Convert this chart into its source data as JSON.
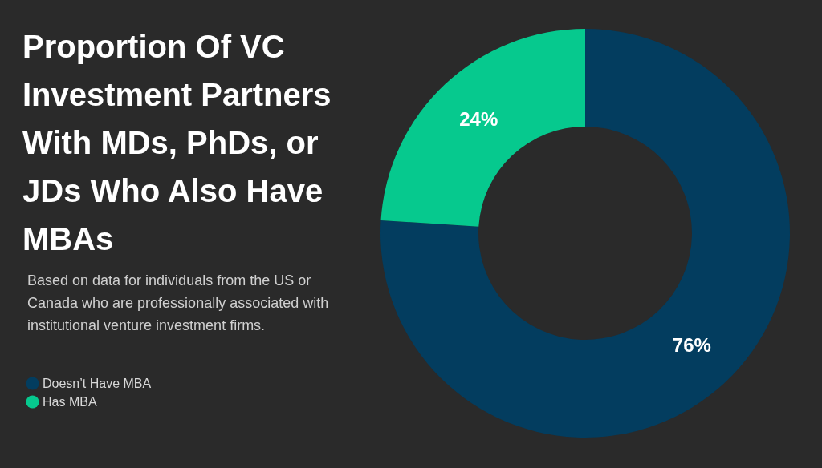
{
  "chart_data": {
    "type": "donut",
    "title": "Proportion Of VC Investment Partners With MDs, PhDs, or JDs Who Also Have MBAs",
    "subtitle": "Based on data for individuals from the US or Canada who are professionally associated with institutional venture investment firms.",
    "categories": [
      "Doesn’t Have MBA",
      "Has MBA"
    ],
    "values": [
      76,
      24
    ],
    "colors": [
      "#033d5f",
      "#06c98e"
    ],
    "value_labels": [
      "76%",
      "24%"
    ],
    "legend": "bottom left"
  }
}
